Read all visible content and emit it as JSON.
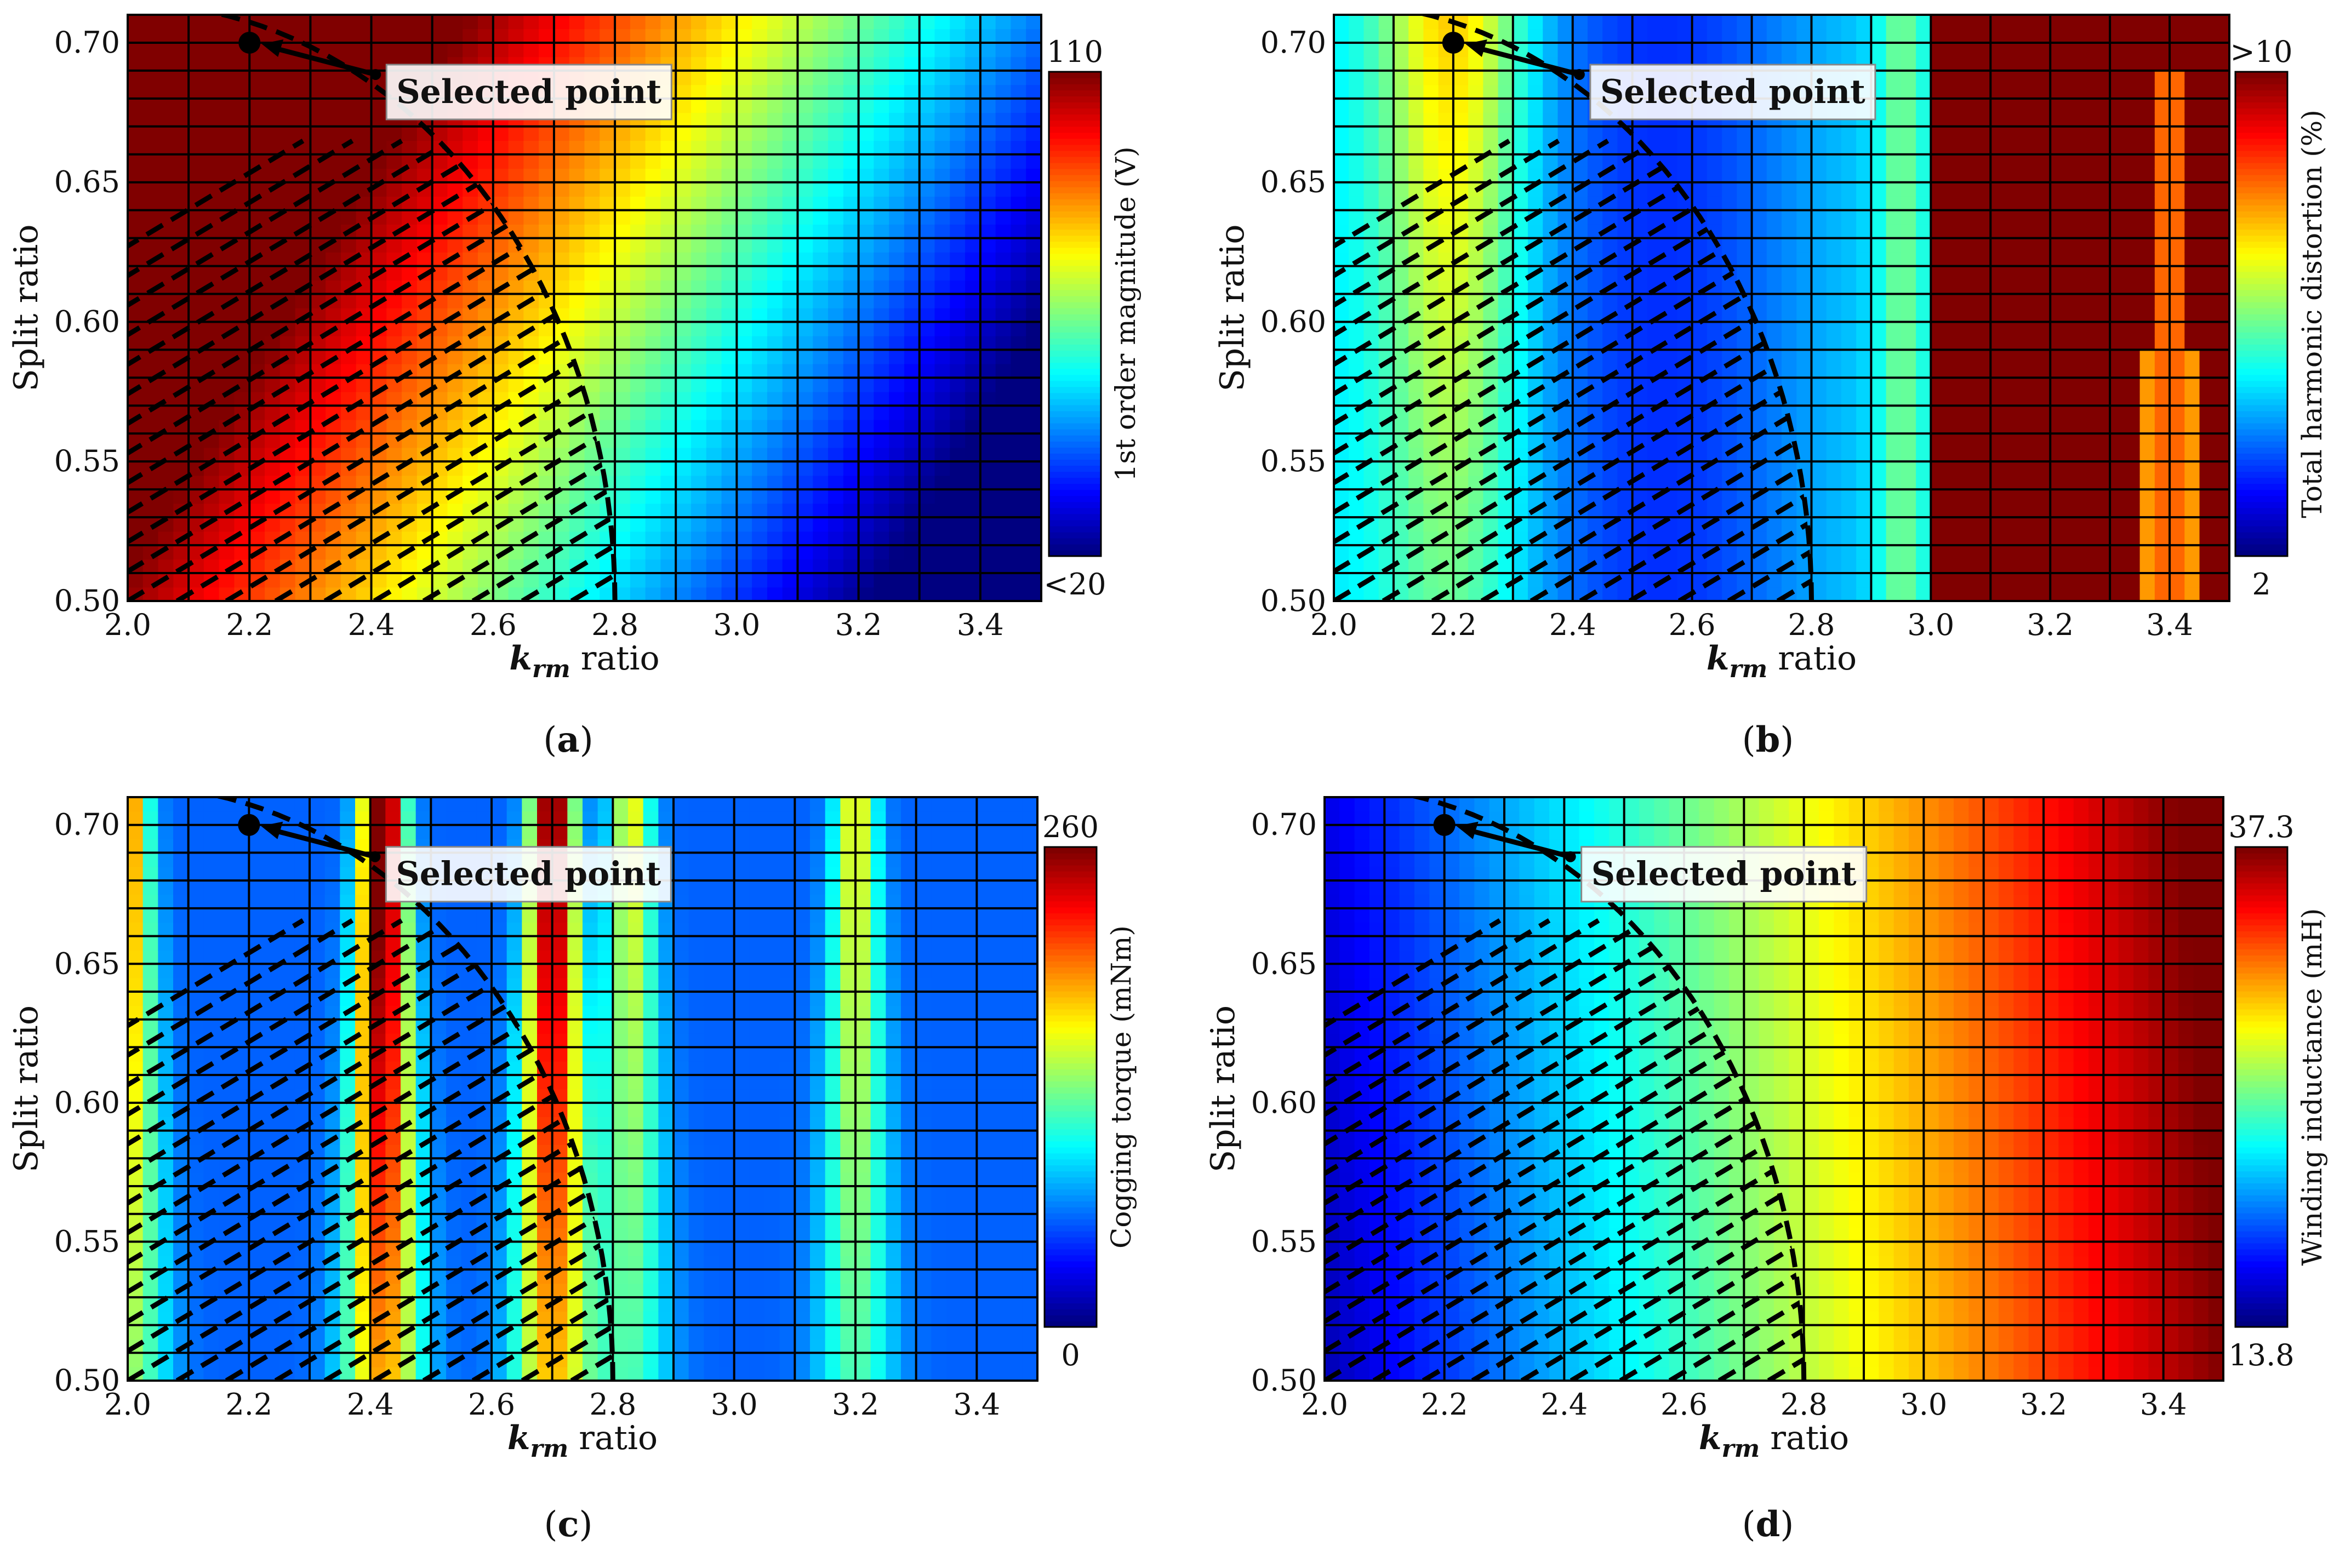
{
  "figure": {
    "panels": [
      "(a)",
      "(b)",
      "(c)",
      "(d)"
    ]
  },
  "chart_data": [
    {
      "type": "heatmap",
      "panel_label": "a",
      "xlabel_var": "k",
      "xlabel_sub": "rm",
      "xlabel_rest": " ratio",
      "ylabel": "Split ratio",
      "xlim": [
        2.0,
        3.5
      ],
      "ylim": [
        0.5,
        0.71
      ],
      "xticks": [
        2.0,
        2.2,
        2.4,
        2.6,
        2.8,
        3.0,
        3.2,
        3.4
      ],
      "xtick_labels": [
        "2.0",
        "2.2",
        "2.4",
        "2.6",
        "2.8",
        "3.0",
        "3.2",
        "3.4"
      ],
      "yticks": [
        0.5,
        0.55,
        0.6,
        0.65,
        0.7
      ],
      "ytick_labels": [
        "0.50",
        "0.55",
        "0.60",
        "0.65",
        "0.70"
      ],
      "colorbar": {
        "label": "1st order magnitude (V)",
        "max_label": "110",
        "min_label": "<20",
        "range": [
          20,
          110
        ]
      },
      "metric": "emf",
      "selected_point": {
        "x": 2.2,
        "y": 0.7,
        "label": "Selected point"
      },
      "feasible_boundary": "circle centered at (2.0, 0.50) through (2.2, 0.71) and (2.8, 0.50)",
      "grid_x_step": 0.1,
      "grid_y_step": 0.01
    },
    {
      "type": "heatmap",
      "panel_label": "b",
      "xlabel_var": "k",
      "xlabel_sub": "rm",
      "xlabel_rest": " ratio",
      "ylabel": "Split ratio",
      "xlim": [
        2.0,
        3.5
      ],
      "ylim": [
        0.5,
        0.71
      ],
      "xticks": [
        2.0,
        2.2,
        2.4,
        2.6,
        2.8,
        3.0,
        3.2,
        3.4
      ],
      "xtick_labels": [
        "2.0",
        "2.2",
        "2.4",
        "2.6",
        "2.8",
        "3.0",
        "3.2",
        "3.4"
      ],
      "yticks": [
        0.5,
        0.55,
        0.6,
        0.65,
        0.7
      ],
      "ytick_labels": [
        "0.50",
        "0.55",
        "0.60",
        "0.65",
        "0.70"
      ],
      "colorbar": {
        "label": "Total harmonic distortion (%)",
        "max_label": ">10",
        "min_label": "2",
        "range": [
          2,
          10
        ]
      },
      "metric": "thd",
      "selected_point": {
        "x": 2.2,
        "y": 0.7,
        "label": "Selected point"
      },
      "feasible_boundary": "circle centered at (2.0, 0.50) through (2.2, 0.71) and (2.8, 0.50)",
      "grid_x_step": 0.1,
      "grid_y_step": 0.01
    },
    {
      "type": "heatmap",
      "panel_label": "c",
      "xlabel_var": "k",
      "xlabel_sub": "rm",
      "xlabel_rest": " ratio",
      "ylabel": "Split ratio",
      "xlim": [
        2.0,
        3.5
      ],
      "ylim": [
        0.5,
        0.71
      ],
      "xticks": [
        2.0,
        2.2,
        2.4,
        2.6,
        2.8,
        3.0,
        3.2,
        3.4
      ],
      "xtick_labels": [
        "2.0",
        "2.2",
        "2.4",
        "2.6",
        "2.8",
        "3.0",
        "3.2",
        "3.4"
      ],
      "yticks": [
        0.5,
        0.55,
        0.6,
        0.65,
        0.7
      ],
      "ytick_labels": [
        "0.50",
        "0.55",
        "0.60",
        "0.65",
        "0.70"
      ],
      "colorbar": {
        "label": "Cogging torque (mNm)",
        "max_label": "260",
        "min_label": "0",
        "range": [
          0,
          260
        ]
      },
      "metric": "cogging",
      "selected_point": {
        "x": 2.2,
        "y": 0.7,
        "label": "Selected point"
      },
      "feasible_boundary": "circle centered at (2.0, 0.50) through (2.2, 0.71) and (2.8, 0.50)",
      "grid_x_step": 0.1,
      "grid_y_step": 0.01
    },
    {
      "type": "heatmap",
      "panel_label": "d",
      "xlabel_var": "k",
      "xlabel_sub": "rm",
      "xlabel_rest": " ratio",
      "ylabel": "Split ratio",
      "xlim": [
        2.0,
        3.5
      ],
      "ylim": [
        0.5,
        0.71
      ],
      "xticks": [
        2.0,
        2.2,
        2.4,
        2.6,
        2.8,
        3.0,
        3.2,
        3.4
      ],
      "xtick_labels": [
        "2.0",
        "2.2",
        "2.4",
        "2.6",
        "2.8",
        "3.0",
        "3.2",
        "3.4"
      ],
      "yticks": [
        0.5,
        0.55,
        0.6,
        0.65,
        0.7
      ],
      "ytick_labels": [
        "0.50",
        "0.55",
        "0.60",
        "0.65",
        "0.70"
      ],
      "colorbar": {
        "label": "Winding inductance (mH)",
        "max_label": "37.3",
        "min_label": "13.8",
        "range": [
          13.8,
          37.3
        ]
      },
      "metric": "inductance",
      "selected_point": {
        "x": 2.2,
        "y": 0.7,
        "label": "Selected point"
      },
      "feasible_boundary": "circle centered at (2.0, 0.50) through (2.2, 0.71) and (2.8, 0.50)",
      "grid_x_step": 0.1,
      "grid_y_step": 0.01
    }
  ]
}
